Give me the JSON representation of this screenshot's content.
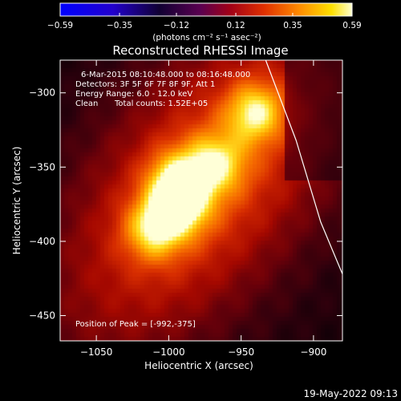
{
  "chart_data": {
    "type": "heatmap",
    "title": "Reconstructed RHESSI Image",
    "xlabel": "Heliocentric X (arcsec)",
    "ylabel": "Heliocentric Y (arcsec)",
    "xlim": [
      -1075,
      -880
    ],
    "ylim": [
      -467,
      -278
    ],
    "x_ticks": [
      -1050,
      -1000,
      -950,
      -900
    ],
    "y_ticks": [
      -300,
      -350,
      -400,
      -450
    ],
    "colorbar": {
      "range": [
        -0.59,
        0.59
      ],
      "ticks": [
        "-0.59",
        "-0.35",
        "-0.12",
        "0.12",
        "0.35",
        "0.59"
      ],
      "tick_values": [
        -0.59,
        -0.35,
        -0.12,
        0.12,
        0.35,
        0.59
      ],
      "unit_label": "(photons cm⁻² s⁻¹ asec⁻²)",
      "colormap": "rainbow-dark (blue → purple → red → orange → yellow → white)"
    },
    "annotations": {
      "time_range": "6-Mar-2015 08:10:48.000 to 08:16:48.000",
      "detectors": "Detectors: 3F 5F 6F 7F 8F 9F, Att 1",
      "energy": "Energy Range: 6.0 - 12.0 keV",
      "method": "Clean",
      "counts": "Total counts: 1.52E+05",
      "peak": "Position of Peak = [-992,-375]"
    },
    "sources": [
      {
        "x": -992,
        "y": -375,
        "peak": 1.0
      },
      {
        "x": -1010,
        "y": -392,
        "peak": 0.86
      },
      {
        "x": -940,
        "y": -313,
        "peak": 0.92
      },
      {
        "x": -968,
        "y": -348,
        "peak": 0.78
      },
      {
        "x": -995,
        "y": -358,
        "peak": 0.72
      }
    ],
    "limb_curve": [
      [
        -933,
        -278
      ],
      [
        -912,
        -332
      ],
      [
        -895,
        -387
      ],
      [
        -880,
        -422
      ]
    ]
  },
  "footer": {
    "date": "19-May-2022 09:13"
  },
  "colors": {
    "background": "#000000",
    "text": "#ffffff"
  }
}
